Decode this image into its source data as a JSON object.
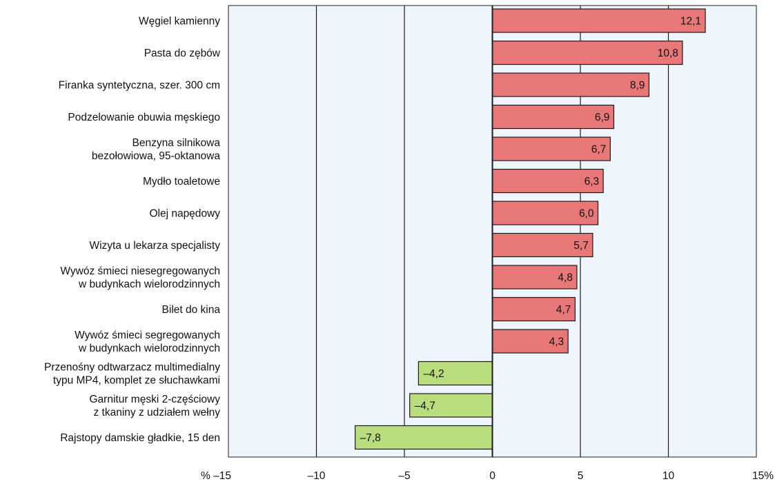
{
  "chart_data": {
    "type": "bar",
    "orientation": "horizontal",
    "categories": [
      [
        "Węgiel kamienny"
      ],
      [
        "Pasta do zębów"
      ],
      [
        "Firanka syntetyczna, szer. 300 cm"
      ],
      [
        "Podzelowanie obuwia męskiego"
      ],
      [
        "Benzyna silnikowa",
        "bezołowiowa, 95-oktanowa"
      ],
      [
        "Mydło toaletowe"
      ],
      [
        "Olej napędowy"
      ],
      [
        "Wizyta u lekarza specjalisty"
      ],
      [
        "Wywóz śmieci niesegregowanych",
        "w budynkach wielorodzinnych"
      ],
      [
        "Bilet do kina"
      ],
      [
        "Wywóz śmieci segregowanych",
        "w budynkach wielorodzinnych"
      ],
      [
        "Przenośny odtwarzacz multimedialny",
        "typu MP4, komplet ze słuchawkami"
      ],
      [
        "Garnitur męski 2-częściowy",
        "z tkaniny z udziałem wełny"
      ],
      [
        "Rajstopy damskie gładkie, 15 den"
      ]
    ],
    "values": [
      12.1,
      10.8,
      8.9,
      6.9,
      6.7,
      6.3,
      6.0,
      5.7,
      4.8,
      4.7,
      4.3,
      -4.2,
      -4.7,
      -7.8
    ],
    "value_labels": [
      "12,1",
      "10,8",
      "8,9",
      "6,9",
      "6,7",
      "6,3",
      "6,0",
      "5,7",
      "4,8",
      "4,7",
      "4,3",
      "–4,2",
      "–4,7",
      "–7,8"
    ],
    "xlim": [
      -15,
      15
    ],
    "xticks": [
      -15,
      -10,
      -5,
      0,
      5,
      10,
      15
    ],
    "xtick_labels": [
      "% –15",
      "–10",
      "–5",
      "0",
      "5",
      "10",
      "15%"
    ],
    "grid": "vertical",
    "colors": {
      "positive": "#e87878",
      "negative": "#b9dc7c",
      "plot_background": "#eef5fc",
      "bar_stroke": "#1a1a1a",
      "grid": "#1a1a1a"
    }
  }
}
